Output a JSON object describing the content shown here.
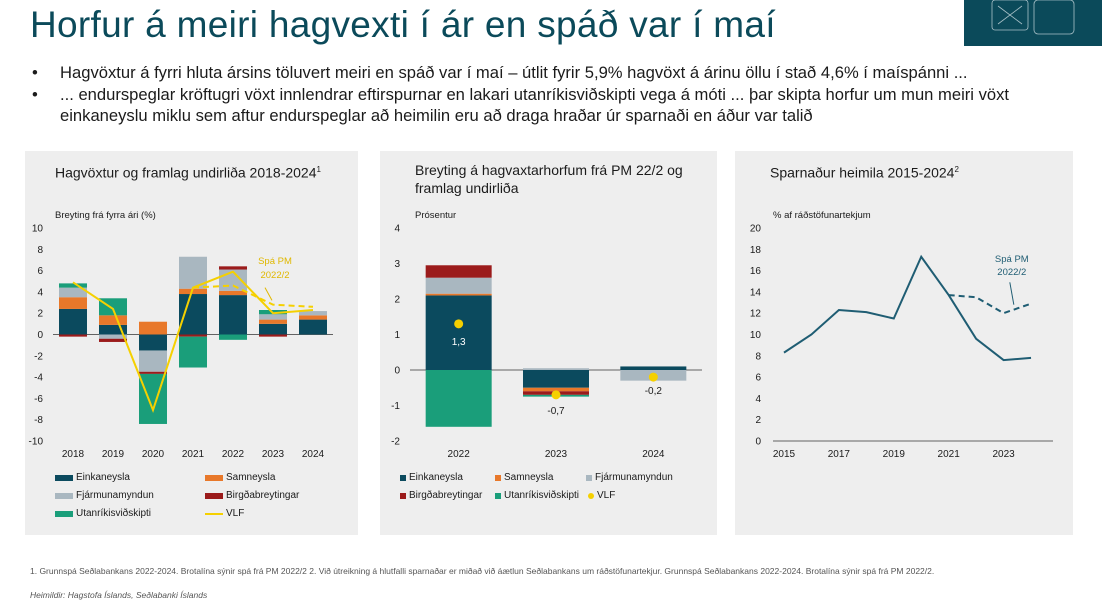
{
  "page": {
    "title": "Horfur á meiri hagvexti í ár en spáð var í maí",
    "bullets": [
      "Hagvöxtur á fyrri hluta ársins töluvert meiri en spáð var í maí – útlit fyrir 5,9% hagvöxt á árinu öllu í stað 4,6% í maíspánni ...",
      "... endurspeglar kröftugri vöxt innlendrar eftirspurnar en lakari utanríkisviðskipti vega á móti ... þar skipta horfur um mun meiri vöxt einkaneyslu miklu sem aftur endurspeglar að heimilin eru að draga hraðar úr sparnaði en áður var talið"
    ],
    "footnote": "1. Grunnspá Seðlabankans 2022-2024. Brotalína sýnir spá frá PM 2022/2 2. Við útreikning á hlutfalli sparnaðar er miðað við áætlun Seðlabankans um ráðstöfunartekjur. Grunnspá Seðlabankans 2022-2024. Brotalína sýnir spá frá PM 2022/2.",
    "source_label": "Heimildir:",
    "source_text": "Hagstofa Íslands, Seðlabanki Íslands",
    "colors": {
      "einkaneysla": "#0b4a5e",
      "samneysla": "#e8782a",
      "fjarmunamyndun": "#a9b7c0",
      "birgdabreytingar": "#9b1b1b",
      "utanrikisvidskipti": "#1a9e7a",
      "vlf": "#f5d000",
      "line": "#1f5d73",
      "panel": "#eeeeee",
      "title": "#0b4a5a"
    }
  },
  "chart_data": [
    {
      "type": "bar",
      "title": "Hagvöxtur og framlag undirliða 2018-2024",
      "title_sup": "1",
      "ylabel": "Breyting frá fyrra ári (%)",
      "ylim": [
        -10,
        10
      ],
      "yticks": [
        "10",
        "8",
        "6",
        "4",
        "2",
        "0",
        "-2",
        "-4",
        "-6",
        "-8",
        "-10"
      ],
      "categories": [
        "2018",
        "2019",
        "2020",
        "2021",
        "2022",
        "2023",
        "2024"
      ],
      "series": [
        {
          "name": "Einkaneysla",
          "values": [
            2.4,
            0.9,
            -1.5,
            3.8,
            3.7,
            1.0,
            1.4
          ]
        },
        {
          "name": "Samneysla",
          "values": [
            1.1,
            0.9,
            1.2,
            0.5,
            0.4,
            0.4,
            0.4
          ]
        },
        {
          "name": "Fjármunamyndun",
          "values": [
            0.9,
            -0.4,
            -2.0,
            3.0,
            2.0,
            0.5,
            0.4
          ]
        },
        {
          "name": "Birgðabreytingar",
          "values": [
            -0.2,
            -0.3,
            -0.2,
            -0.2,
            0.3,
            -0.2,
            0.0
          ]
        },
        {
          "name": "Utanríkisviðskipti",
          "values": [
            0.4,
            1.6,
            -4.7,
            -2.9,
            -0.5,
            0.4,
            0.0
          ]
        },
        {
          "name": "VLF",
          "values": [
            4.9,
            2.4,
            -7.1,
            4.4,
            5.9,
            2.0,
            2.3
          ]
        }
      ],
      "forecast_dashed": {
        "label": "Spá PM 2022/2",
        "x": [
          "2021",
          "2022",
          "2023",
          "2024"
        ],
        "values": [
          4.4,
          4.6,
          2.8,
          2.6
        ]
      },
      "legend": [
        "Einkaneysla",
        "Samneysla",
        "Fjármunamyndun",
        "Birgðabreytingar",
        "Utanríkisviðskipti",
        "VLF"
      ]
    },
    {
      "type": "bar",
      "title": "Breyting á hagvaxtarhorfum frá PM 22/2 og framlag undirliða",
      "ylabel": "Prósentur",
      "ylim": [
        -2,
        4
      ],
      "yticks": [
        "4",
        "3",
        "2",
        "1",
        "0",
        "-1",
        "-2"
      ],
      "categories": [
        "2022",
        "2023",
        "2024"
      ],
      "series": [
        {
          "name": "Einkaneysla",
          "values": [
            2.1,
            -0.5,
            0.1
          ]
        },
        {
          "name": "Samneysla",
          "values": [
            0.05,
            -0.1,
            0.0
          ]
        },
        {
          "name": "Fjármunamyndun",
          "values": [
            0.45,
            0.05,
            -0.3
          ]
        },
        {
          "name": "Birgðabreytingar",
          "values": [
            0.35,
            -0.1,
            0.0
          ]
        },
        {
          "name": "Utanríkisviðskipti",
          "values": [
            -1.6,
            -0.05,
            0.0
          ]
        }
      ],
      "vlf_points": [
        1.3,
        -0.7,
        -0.2
      ],
      "vlf_labels": [
        "1,3",
        "-0,7",
        "-0,2"
      ],
      "legend": [
        "Einkaneysla",
        "Samneysla",
        "Fjármunamyndun",
        "Birgðabreytingar",
        "Utanríkisviðskipti",
        "VLF"
      ]
    },
    {
      "type": "line",
      "title": "Sparnaður heimila 2015-2024",
      "title_sup": "2",
      "ylabel": "% af ráðstöfunartekjum",
      "ylim": [
        0,
        20
      ],
      "yticks": [
        "20",
        "18",
        "16",
        "14",
        "12",
        "10",
        "8",
        "6",
        "4",
        "2",
        "0"
      ],
      "xticks": [
        "2015",
        "2017",
        "2019",
        "2021",
        "2023"
      ],
      "x": [
        2015,
        2016,
        2017,
        2018,
        2019,
        2020,
        2021,
        2022,
        2023,
        2024
      ],
      "values": [
        8.3,
        10.0,
        12.3,
        12.1,
        11.5,
        17.3,
        13.7,
        9.6,
        7.6,
        7.8
      ],
      "forecast_dashed": {
        "label": "Spá PM 2022/2",
        "x": [
          2021,
          2022,
          2023,
          2024
        ],
        "values": [
          13.7,
          13.5,
          12.0,
          12.9
        ]
      }
    }
  ]
}
